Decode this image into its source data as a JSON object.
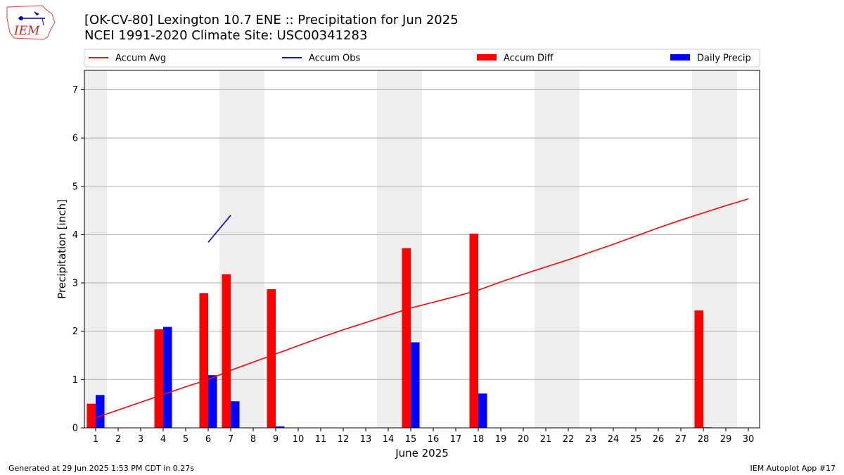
{
  "header": {
    "title_line1": "[OK-CV-80] Lexington 10.7 ENE :: Precipitation for Jun 2025",
    "title_line2": "NCEI 1991-2020 Climate Site: USC00341283",
    "logo_text": "IEM"
  },
  "footer": {
    "generated": "Generated at 29 Jun 2025 1:53 PM CDT in 0.27s",
    "app": "IEM Autoplot App #17"
  },
  "colors": {
    "accum_avg": "#ff0000",
    "accum_obs": "#0000ff",
    "accum_diff": "#ff0000",
    "daily_precip": "#0000ff",
    "weekend_shade": "#eeeeee",
    "grid": "#b0b0b0"
  },
  "chart_data": {
    "type": "bar",
    "xlabel": "June 2025",
    "ylabel": "Precipitation [inch]",
    "ylim": [
      0,
      7.4
    ],
    "yticks": [
      0,
      1,
      2,
      3,
      4,
      5,
      6,
      7
    ],
    "xlim": [
      0.5,
      30.5
    ],
    "categories": [
      "1",
      "2",
      "3",
      "4",
      "5",
      "6",
      "7",
      "8",
      "9",
      "10",
      "11",
      "12",
      "13",
      "14",
      "15",
      "16",
      "17",
      "18",
      "19",
      "20",
      "21",
      "22",
      "23",
      "24",
      "25",
      "26",
      "27",
      "28",
      "29",
      "30"
    ],
    "grid": "horizontal",
    "legend_placement": "top",
    "legend": [
      "Accum Avg",
      "Accum Obs",
      "Accum Diff",
      "Daily Precip"
    ],
    "weekend_spans": [
      [
        0.5,
        1.5
      ],
      [
        6.5,
        8.5
      ],
      [
        13.5,
        15.5
      ],
      [
        20.5,
        22.5
      ],
      [
        27.5,
        29.5
      ]
    ],
    "series": [
      {
        "name": "Accum Avg",
        "kind": "line",
        "x": [
          1,
          2,
          3,
          4,
          5,
          6,
          7,
          8,
          9,
          10,
          11,
          12,
          13,
          14,
          15,
          16,
          17,
          18,
          19,
          20,
          21,
          22,
          23,
          24,
          25,
          26,
          27,
          28,
          29,
          30
        ],
        "values": [
          0.21,
          0.37,
          0.53,
          0.69,
          0.85,
          1.0,
          1.19,
          1.36,
          1.53,
          1.7,
          1.87,
          2.03,
          2.18,
          2.33,
          2.48,
          2.6,
          2.72,
          2.85,
          3.02,
          3.18,
          3.33,
          3.48,
          3.64,
          3.8,
          3.97,
          4.14,
          4.3,
          4.45,
          4.6,
          4.74
        ]
      },
      {
        "name": "Accum Obs",
        "kind": "line",
        "x": [
          6,
          7
        ],
        "values": [
          3.84,
          4.4
        ]
      },
      {
        "name": "Accum Diff",
        "kind": "bar",
        "x": [
          1,
          4,
          6,
          7,
          9,
          15,
          18,
          28
        ],
        "values": [
          0.5,
          2.04,
          2.79,
          3.18,
          2.87,
          3.72,
          4.02,
          2.43
        ]
      },
      {
        "name": "Daily Precip",
        "kind": "bar",
        "x": [
          1,
          4,
          6,
          7,
          9,
          15,
          18,
          28
        ],
        "values": [
          0.68,
          2.09,
          1.09,
          0.55,
          0.03,
          1.77,
          0.71,
          0.01
        ]
      }
    ]
  }
}
